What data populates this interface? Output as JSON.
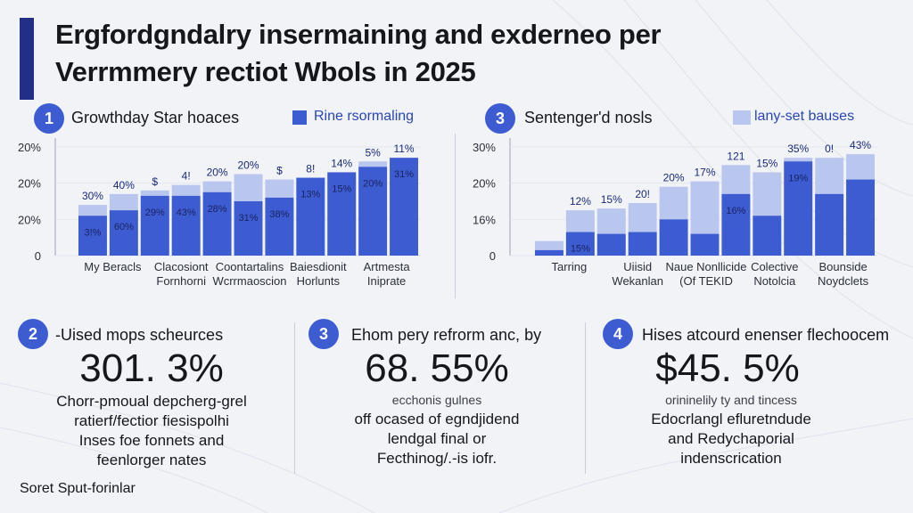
{
  "title": {
    "line1": "Ergfordgndalry insermaining and exderneo per",
    "line2": "Verrmmery rectiot Wbols in 2025"
  },
  "colors": {
    "dark_bar": "#3d5cd1",
    "light_bar": "#b9c6ee",
    "accent": "#232f86",
    "legend_text": "#2a46b5"
  },
  "panel1": {
    "number": "1",
    "title": "Growthday Star hoaces",
    "legend": "Rine rsormaling"
  },
  "panel2": {
    "number": "3",
    "title": "Sentenger'd nosls",
    "legend": "lany-set bauses"
  },
  "chart_data": [
    {
      "type": "bar",
      "title": "Growthday Star hoaces",
      "ylim": [
        0,
        30
      ],
      "y_tick_labels": [
        "0",
        "20%",
        "20%",
        "20%"
      ],
      "x_labels": [
        {
          "lines": [
            "My Beracls"
          ]
        },
        {
          "lines": [
            "Clacosiont",
            "Fornhorni"
          ]
        },
        {
          "lines": [
            "Coontartalins",
            "Wcrrmaoscion"
          ]
        },
        {
          "lines": [
            "Baiesdionit",
            "Horlunts"
          ]
        },
        {
          "lines": [
            "Artmesta",
            "Iniprate"
          ]
        }
      ],
      "series": [
        {
          "name": "Rine rsormaling",
          "values": [
            11,
            12.5,
            16.5,
            16.5,
            17.5,
            15,
            16,
            21.5,
            23,
            24.5,
            27
          ]
        },
        {
          "values": [
            14,
            17,
            18,
            19.5,
            20.5,
            22.5,
            21,
            21.5,
            23,
            26,
            27
          ]
        }
      ],
      "top_labels": [
        "30%",
        "40%",
        "$",
        "4!",
        "20%",
        "20%",
        "$",
        "8!",
        "14%",
        "5%",
        "11%"
      ],
      "inner_labels": [
        "3!%",
        "60%",
        "29%",
        "43%",
        "28%",
        "31%",
        "38%",
        "13%",
        "15%",
        "20%",
        "31%"
      ]
    },
    {
      "type": "bar",
      "title": "Sentenger'd nosls",
      "ylim": [
        0,
        30
      ],
      "y_tick_labels": [
        "0",
        "16%",
        "20%",
        "30%"
      ],
      "x_labels": [
        {
          "lines": [
            "Tarring"
          ]
        },
        {
          "lines": [
            "Uiisid",
            "Wekanlan"
          ]
        },
        {
          "lines": [
            "Naue Nonllicide",
            "(Of TEKID"
          ]
        },
        {
          "lines": [
            "Colective",
            "Notolcia"
          ]
        },
        {
          "lines": [
            "Bounside",
            "Noydclets"
          ]
        }
      ],
      "series": [
        {
          "name": "lany-set bauses",
          "values": [
            1.5,
            6.5,
            6,
            6.5,
            10,
            6,
            17,
            11,
            26,
            17,
            21
          ]
        },
        {
          "values": [
            4,
            12.5,
            13,
            14.5,
            19,
            20.5,
            25,
            23,
            27,
            27,
            28
          ]
        }
      ],
      "top_labels": [
        "",
        "12%",
        "15%",
        "20!",
        "20%",
        "17%",
        "121",
        "15%",
        "35%",
        "0!",
        "43%"
      ],
      "inner_labels": [
        "",
        "15%",
        "",
        "",
        "",
        "",
        "16%",
        "",
        "19%",
        "",
        ""
      ]
    }
  ],
  "stats": [
    {
      "number": "2",
      "title": "-Uised mops scheurces",
      "value": "301. 3%",
      "small": "",
      "lines": [
        "Chorr-pmoual depcherg-grel",
        "ratierf/fectior fiesispolhi",
        "Inses foe fonnets and",
        "feenlorger nates"
      ]
    },
    {
      "number": "3",
      "title": "Ehom pery refrorm anc, by",
      "value": "68. 55%",
      "small": "ecchonis gulnes",
      "lines": [
        "off ocased of egndjidend",
        "lendgal final or",
        "Fecthinog/.-is iofr."
      ]
    },
    {
      "number": "4",
      "title": "Hises atcourd enenser flechoocem",
      "value": "$45. 5%",
      "small": "orininelily ty and tincess",
      "lines": [
        "Edocrlangl efluretndude",
        "and Redychaporial",
        "indenscrication"
      ]
    }
  ],
  "footer": "Soret Sput-forinlar"
}
